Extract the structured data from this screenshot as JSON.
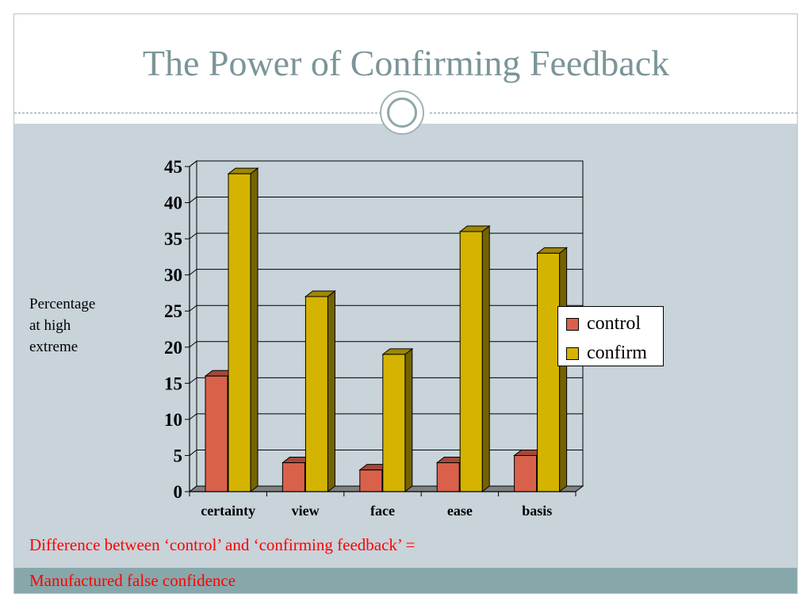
{
  "slide": {
    "title": "The Power of Confirming Feedback",
    "ylabel": "Percentage\nat high\nextreme",
    "notes": [
      "Difference between ‘control’ and ‘confirming feedback’ =",
      "Manufactured false confidence"
    ]
  },
  "colors": {
    "title": "#7b9599",
    "content_background": "#c8d3da",
    "footer_band": "#87a8ab",
    "note_text": "#ff0000",
    "control": "#d9614c",
    "confirm": "#d4b400"
  },
  "chart_data": {
    "type": "bar",
    "style": "3d-clustered",
    "categories": [
      "certainty",
      "view",
      "face",
      "ease",
      "basis"
    ],
    "series": [
      {
        "name": "control",
        "values": [
          16,
          4,
          3,
          4,
          5
        ]
      },
      {
        "name": "confirm",
        "values": [
          44,
          27,
          19,
          36,
          33
        ]
      }
    ],
    "ylim": [
      0,
      45
    ],
    "yticks": [
      0,
      5,
      10,
      15,
      20,
      25,
      30,
      35,
      40,
      45
    ],
    "ylabel": "Percentage at high extreme",
    "grid": true,
    "legend": "right"
  }
}
